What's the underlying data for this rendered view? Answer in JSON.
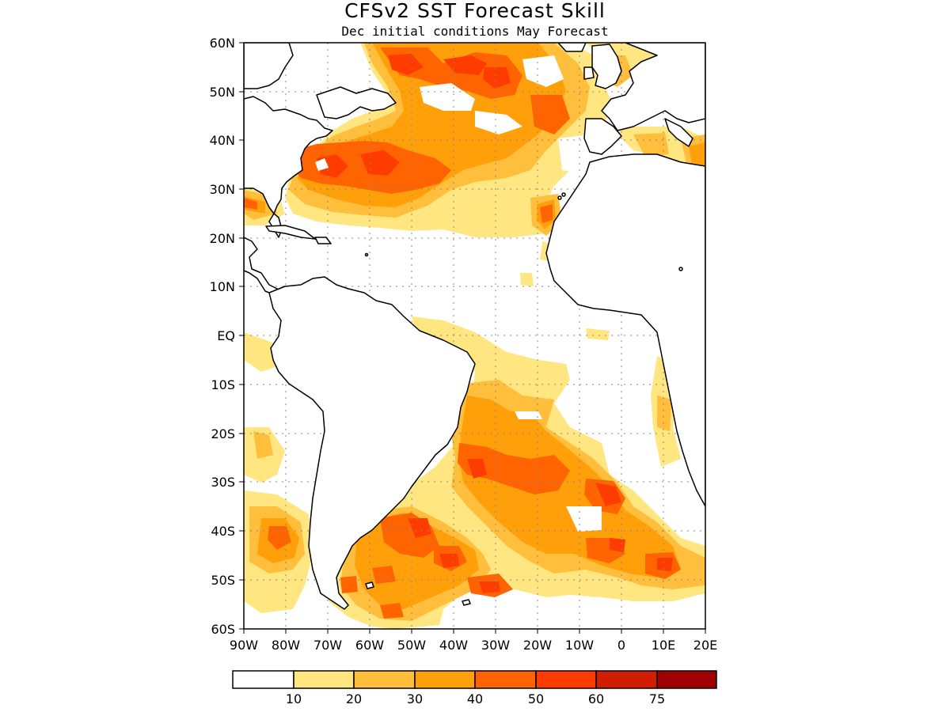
{
  "title": "CFSv2 SST Forecast Skill",
  "subtitle": "Dec initial conditions   May Forecast",
  "lat_labels": [
    "60N",
    "50N",
    "40N",
    "30N",
    "20N",
    "10N",
    "EQ",
    "10S",
    "20S",
    "30S",
    "40S",
    "50S",
    "60S"
  ],
  "lon_labels": [
    "90W",
    "80W",
    "70W",
    "60W",
    "50W",
    "40W",
    "30W",
    "20W",
    "10W",
    "0",
    "10E",
    "20E"
  ],
  "colorbar": {
    "labels": [
      "10",
      "20",
      "30",
      "40",
      "50",
      "60",
      "75"
    ],
    "colors": [
      "#ffffff",
      "#ffe680",
      "#ffbe3c",
      "#ffa00a",
      "#ff6400",
      "#ff3c00",
      "#d21e00",
      "#a00000"
    ]
  },
  "map_extent": {
    "lon_range": [
      -90,
      20
    ],
    "lat_range": [
      -60,
      60
    ]
  }
}
